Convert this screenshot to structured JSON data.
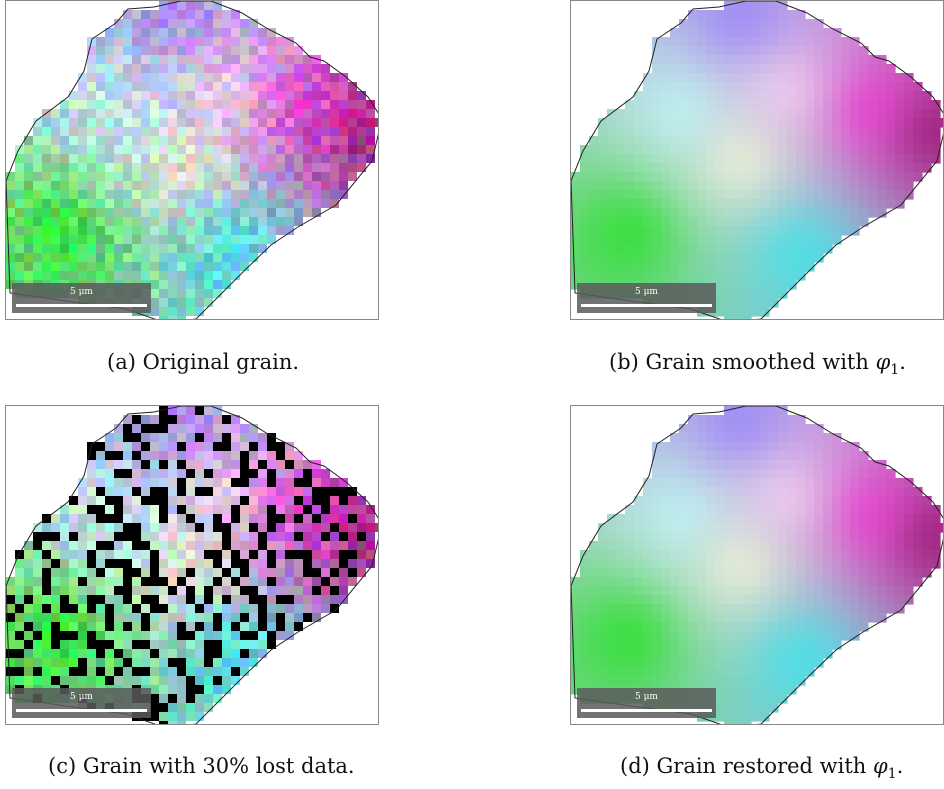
{
  "panels": [
    {
      "id": "a",
      "variant": "original",
      "caption_text": "(a) Original grain."
    },
    {
      "id": "b",
      "variant": "smooth",
      "caption_text": "(b) Grain smoothed with ",
      "caption_math": "φ",
      "caption_sub": "1",
      "caption_end": "."
    },
    {
      "id": "c",
      "variant": "lost",
      "caption_text": "(c) Grain with 30% lost data."
    },
    {
      "id": "d",
      "variant": "smooth",
      "caption_text": "(d) Grain restored with ",
      "caption_math": "φ",
      "caption_sub": "1",
      "caption_end": "."
    }
  ],
  "scalebar": {
    "label": "5 μm"
  },
  "colors": {
    "lost_pixel": "#000000",
    "outline": "#222222",
    "scalebar_bg": "#5a5a5a"
  },
  "lost_fraction": 0.3
}
